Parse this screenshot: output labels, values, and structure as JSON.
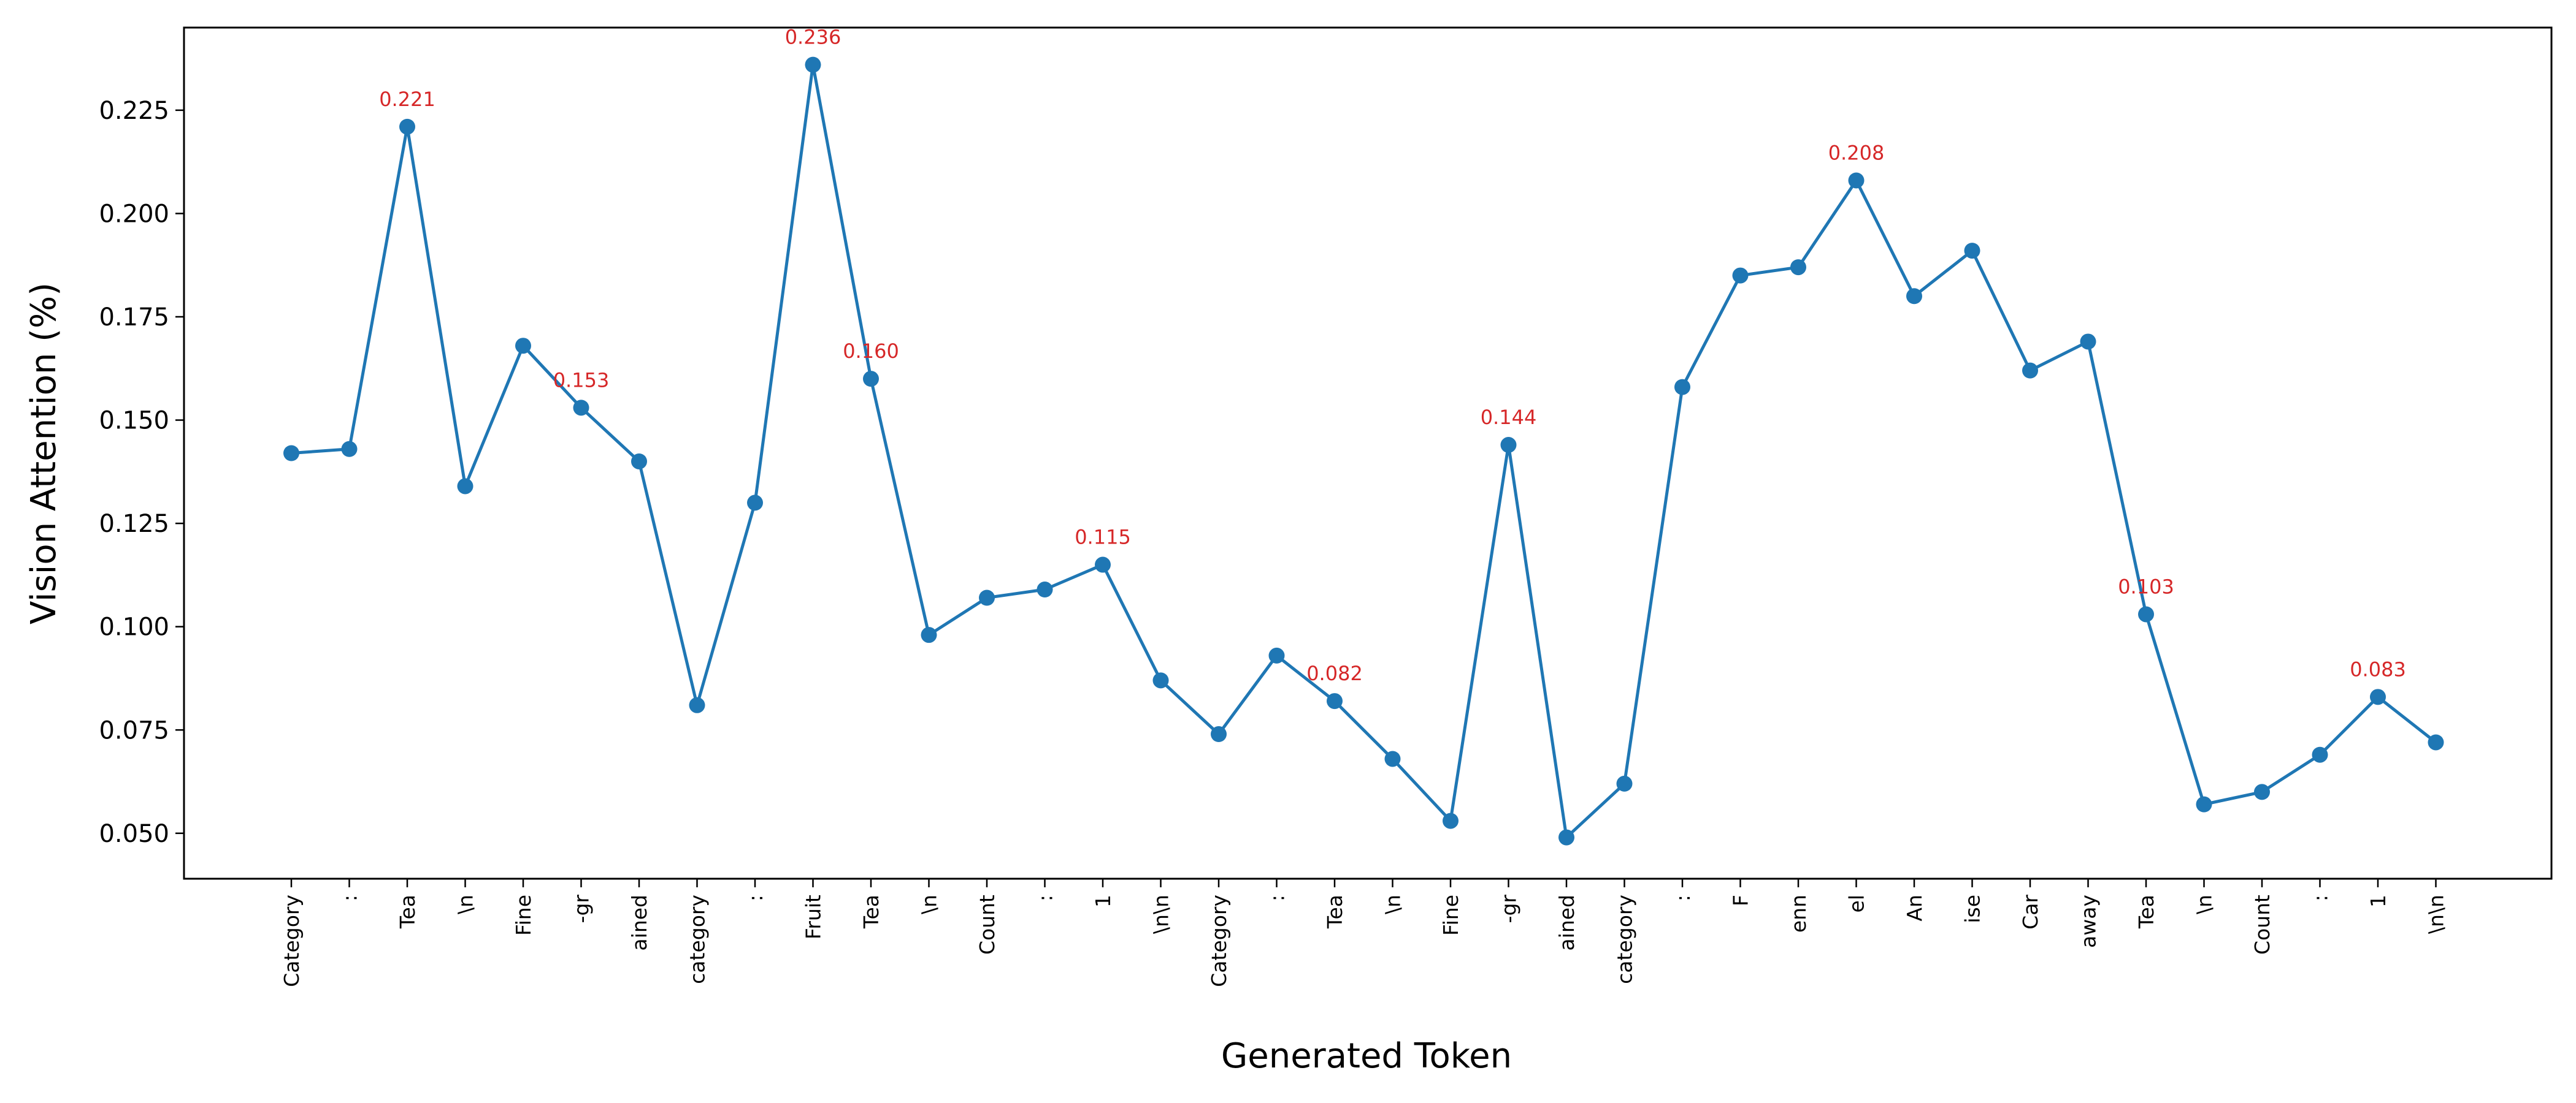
{
  "chart_data": {
    "type": "line",
    "xlabel": "Generated Token",
    "ylabel": "Vision Attention (%)",
    "ylim": [
      0.039,
      0.245
    ],
    "yticks": [
      "0.050",
      "0.075",
      "0.100",
      "0.125",
      "0.150",
      "0.175",
      "0.200",
      "0.225"
    ],
    "grid": false,
    "categories": [
      "Category",
      ":",
      "Tea",
      "\\n",
      "Fine",
      "-gr",
      "ained",
      "category",
      ":",
      "Fruit",
      "Tea",
      "\\n",
      "Count",
      ":",
      "1",
      "\\n\\n",
      "Category",
      ":",
      "Tea",
      "\\n",
      "Fine",
      "-gr",
      "ained",
      "category",
      ":",
      "F",
      "enn",
      "el",
      "An",
      "ise",
      "Car",
      "away",
      "Tea",
      "\\n",
      "Count",
      ":",
      "1",
      "\\n\\n"
    ],
    "series": [
      {
        "values": [
          0.142,
          0.143,
          0.221,
          0.134,
          0.168,
          0.153,
          0.14,
          0.081,
          0.13,
          0.236,
          0.16,
          0.098,
          0.107,
          0.109,
          0.115,
          0.087,
          0.074,
          0.093,
          0.082,
          0.068,
          0.053,
          0.144,
          0.049,
          0.062,
          0.158,
          0.185,
          0.187,
          0.208,
          0.18,
          0.191,
          0.162,
          0.169,
          0.103,
          0.057,
          0.06,
          0.069,
          0.083,
          0.072
        ],
        "color": "#1f77b4"
      }
    ],
    "annotations": [
      {
        "index": 2,
        "text": "0.221"
      },
      {
        "index": 5,
        "text": "0.153"
      },
      {
        "index": 9,
        "text": "0.236"
      },
      {
        "index": 10,
        "text": "0.160"
      },
      {
        "index": 14,
        "text": "0.115"
      },
      {
        "index": 18,
        "text": "0.082"
      },
      {
        "index": 21,
        "text": "0.144"
      },
      {
        "index": 27,
        "text": "0.208"
      },
      {
        "index": 32,
        "text": "0.103"
      },
      {
        "index": 36,
        "text": "0.083"
      }
    ],
    "annotation_color": "#d62728"
  }
}
